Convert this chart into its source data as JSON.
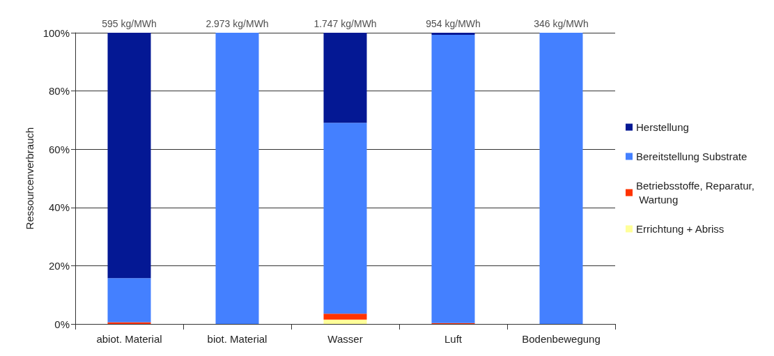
{
  "chart_data": {
    "type": "bar",
    "stacked": true,
    "ylabel": "Ressourcenverbrauch",
    "categories": [
      "abiot. Material",
      "biot. Material",
      "Wasser",
      "Luft",
      "Bodenbewegung"
    ],
    "series": [
      {
        "name": "Errichtung + Abriss",
        "color": "#ffff99",
        "values": [
          0,
          0,
          1.5,
          0,
          0
        ]
      },
      {
        "name": "Betriebsstoffe, Reparatur, Wartung",
        "color": "#ff3300",
        "values": [
          0.6,
          0,
          2,
          0.3,
          0
        ]
      },
      {
        "name": "Bereitstellung Substrate",
        "color": "#4480ff",
        "values": [
          15.1,
          100,
          65.6,
          99,
          100
        ]
      },
      {
        "name": "Herstellung",
        "color": "#041894",
        "values": [
          84.3,
          0,
          30.9,
          0.7,
          0
        ]
      }
    ],
    "annotations": [
      {
        "text": "595 kg/MWh",
        "x": "abiot. Material",
        "y": 100
      },
      {
        "text": "2.973 kg/MWh",
        "x": "biot. Material",
        "y": 100
      },
      {
        "text": "1.747 kg/MWh",
        "x": "Wasser",
        "y": 100
      },
      {
        "text": "954 kg/MWh",
        "x": "Luft",
        "y": 100
      },
      {
        "text": "346 kg/MWh",
        "x": "Bodenbewegung",
        "y": 100
      }
    ],
    "ylim": [
      0,
      100
    ],
    "yticks": [
      {
        "value": 0,
        "label": "0%"
      },
      {
        "value": 20,
        "label": "20%"
      },
      {
        "value": 40,
        "label": "40%"
      },
      {
        "value": 60,
        "label": "60%"
      },
      {
        "value": 80,
        "label": "80%"
      },
      {
        "value": 100,
        "label": "100%"
      }
    ],
    "grid": "y",
    "legend": "right"
  }
}
